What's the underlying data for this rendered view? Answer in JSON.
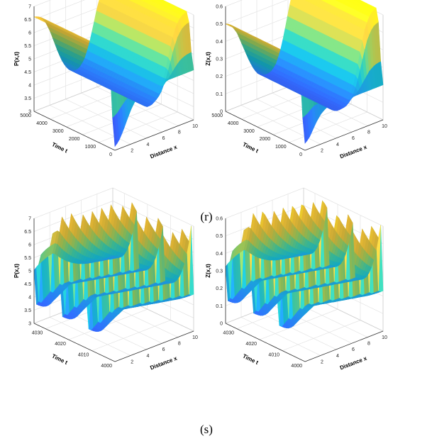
{
  "panels": [
    {
      "caption": "(r)"
    },
    {
      "caption": "(s)"
    }
  ],
  "colormap": [
    "#3e26a8",
    "#4744e3",
    "#2f6bf7",
    "#1f90df",
    "#16adc4",
    "#3bbe9a",
    "#90c25a",
    "#d8b83a",
    "#fcc93a",
    "#f9fb15"
  ],
  "chart_data": [
    {
      "type": "surface",
      "panel": "r",
      "zlabel": "P(x,t)",
      "xlabel": "Distance x",
      "ylabel": "Time t",
      "xlim": [
        0,
        10
      ],
      "ylim": [
        0,
        5000
      ],
      "zlim": [
        3,
        7
      ],
      "x_ticks": [
        "2",
        "4",
        "6",
        "8",
        "10"
      ],
      "y_ticks": [
        "0",
        "1000",
        "2000",
        "3000",
        "4000",
        "5000"
      ],
      "z_ticks": [
        "3",
        "3.5",
        "4",
        "4.5",
        "5",
        "5.5",
        "6",
        "6.5",
        "7"
      ],
      "grid": true,
      "profile_x": [
        0,
        0.5,
        1,
        1.5,
        2,
        2.5,
        3,
        3.5,
        4,
        4.5,
        5,
        5.5,
        6,
        6.5,
        7,
        7.5,
        8,
        8.5,
        9,
        9.5,
        10
      ],
      "profile_t_start": [
        3.15,
        3.3,
        3.6,
        3.95,
        4.3,
        4.55,
        4.75,
        4.85,
        4.9,
        4.9,
        4.9,
        4.9,
        4.9,
        4.9,
        4.9,
        4.9,
        4.9,
        4.9,
        4.9,
        4.9,
        4.9
      ],
      "profile_t_end": [
        6.6,
        6.55,
        6.45,
        6.2,
        5.85,
        5.4,
        4.95,
        4.55,
        4.25,
        4.05,
        3.95,
        3.95,
        4.05,
        4.3,
        4.75,
        5.35,
        6.0,
        6.5,
        6.8,
        6.95,
        7.0
      ],
      "transition_t": [
        0,
        400
      ]
    },
    {
      "type": "surface",
      "panel": "r",
      "zlabel": "Z(x,t)",
      "xlabel": "Distance x",
      "ylabel": "Time t",
      "xlim": [
        0,
        10
      ],
      "ylim": [
        0,
        5000
      ],
      "zlim": [
        0,
        0.6
      ],
      "x_ticks": [
        "2",
        "4",
        "6",
        "8",
        "10"
      ],
      "y_ticks": [
        "0",
        "1000",
        "2000",
        "3000",
        "4000",
        "5000"
      ],
      "z_ticks": [
        "0",
        "0.1",
        "0.2",
        "0.3",
        "0.4",
        "0.5",
        "0.6"
      ],
      "grid": true,
      "profile_x": [
        0,
        0.5,
        1,
        1.5,
        2,
        2.5,
        3,
        3.5,
        4,
        4.5,
        5,
        5.5,
        6,
        6.5,
        7,
        7.5,
        8,
        8.5,
        9,
        9.5,
        10
      ],
      "profile_t_start": [
        0.04,
        0.06,
        0.1,
        0.14,
        0.17,
        0.19,
        0.2,
        0.2,
        0.2,
        0.2,
        0.2,
        0.2,
        0.2,
        0.2,
        0.2,
        0.2,
        0.2,
        0.2,
        0.2,
        0.2,
        0.2
      ],
      "profile_t_end": [
        0.5,
        0.49,
        0.46,
        0.42,
        0.36,
        0.3,
        0.24,
        0.19,
        0.15,
        0.13,
        0.12,
        0.12,
        0.13,
        0.16,
        0.22,
        0.31,
        0.42,
        0.52,
        0.58,
        0.61,
        0.62
      ],
      "transition_t": [
        0,
        400
      ]
    },
    {
      "type": "surface",
      "panel": "s",
      "zlabel": "P(x,t)",
      "xlabel": "Distance x",
      "ylabel": "Time t",
      "xlim": [
        0,
        10
      ],
      "ylim": [
        4000,
        4035
      ],
      "zlim": [
        3,
        7
      ],
      "x_ticks": [
        "2",
        "4",
        "6",
        "8",
        "10"
      ],
      "y_ticks": [
        "4000",
        "4010",
        "4020",
        "4030"
      ],
      "z_ticks": [
        "3",
        "3.5",
        "4",
        "4.5",
        "5",
        "5.5",
        "6",
        "6.5",
        "7"
      ],
      "grid": true,
      "wave": {
        "min": 3.0,
        "max": 7.0,
        "period_t": 11.5,
        "phase_speed": 1.15,
        "sharpness": 3.0,
        "edge_x": 2.5
      }
    },
    {
      "type": "surface",
      "panel": "s",
      "zlabel": "Z(x,t)",
      "xlabel": "Distance x",
      "ylabel": "Time t",
      "xlim": [
        0,
        10
      ],
      "ylim": [
        4000,
        4035
      ],
      "zlim": [
        0,
        0.6
      ],
      "x_ticks": [
        "2",
        "4",
        "6",
        "8",
        "10"
      ],
      "y_ticks": [
        "4000",
        "4010",
        "4020",
        "4030"
      ],
      "z_ticks": [
        "0",
        "0.1",
        "0.2",
        "0.3",
        "0.4",
        "0.5",
        "0.6"
      ],
      "grid": true,
      "wave": {
        "min": 0.02,
        "max": 0.62,
        "period_t": 11.5,
        "phase_speed": 1.15,
        "sharpness": 3.0,
        "edge_x": 2.5
      }
    }
  ]
}
